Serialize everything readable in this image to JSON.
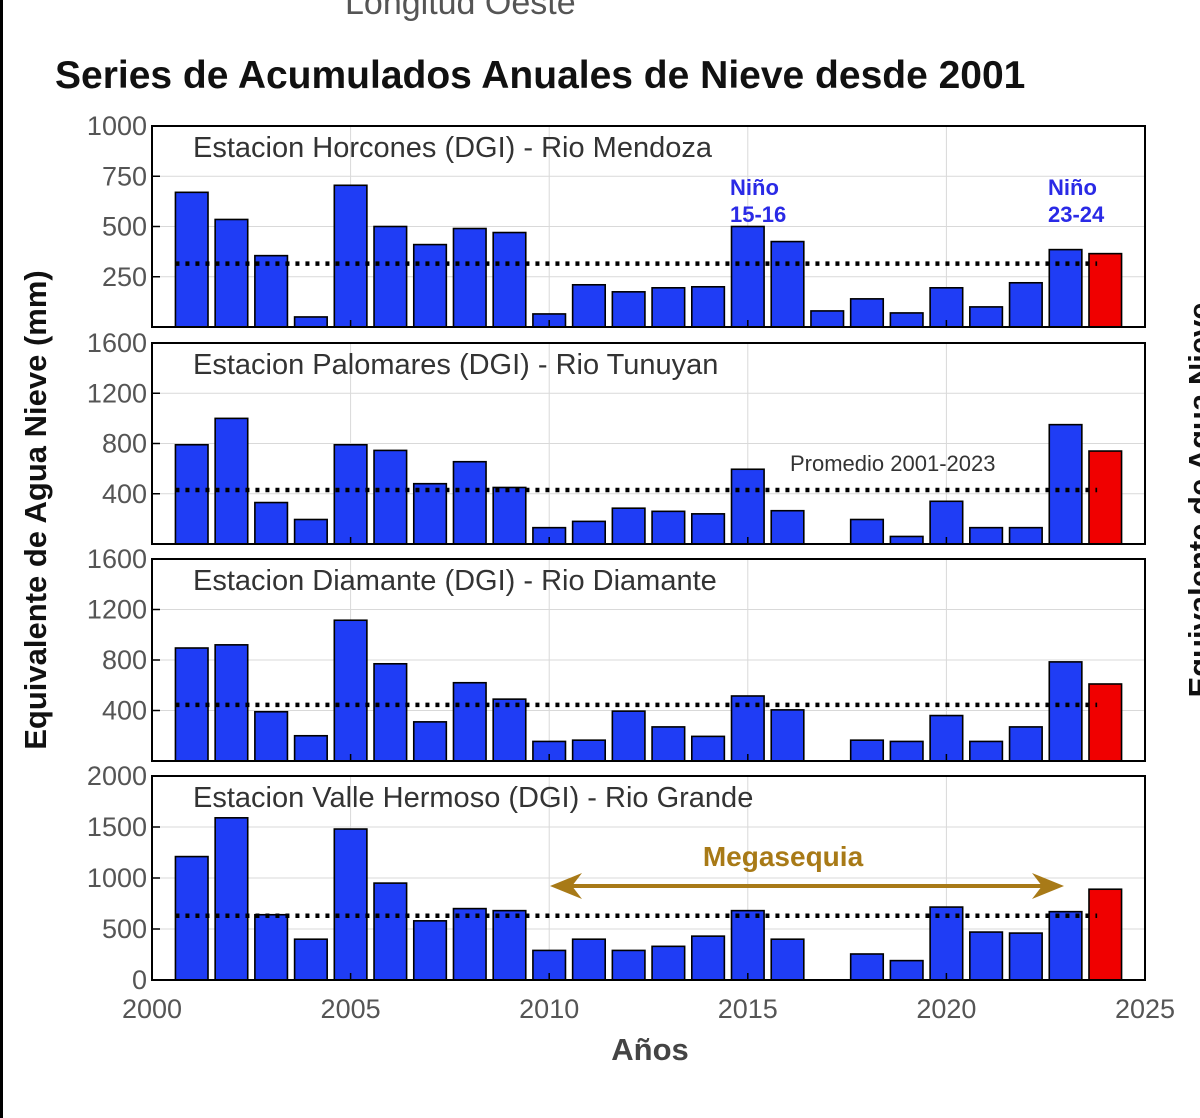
{
  "header": {
    "top_label": "Longitud Oeste",
    "title": "Series de Acumulados Anuales de Nieve desde 2001"
  },
  "axes": {
    "ylabel": "Equivalente de Agua Nieve (mm)",
    "xlabel": "Años",
    "x_ticks": [
      "2000",
      "2005",
      "2010",
      "2015",
      "2020",
      "2025"
    ]
  },
  "colors": {
    "bar": "#1f3df5",
    "bar_current": "#f00000",
    "annotation_nino": "#2a2ae6",
    "annotation_megasequia": "#a87a17",
    "mean_line": "#000000",
    "grid": "#d9d9d9"
  },
  "annotations": {
    "nino_1": "Niño 15-16",
    "nino_2": "Niño 23-24",
    "promedio": "Promedio 2001-2023",
    "megasequia": "Megasequia"
  },
  "right_fragment": "Equivalente de Agua Nieve",
  "chart_data": [
    {
      "type": "bar",
      "title": "Estacion Horcones (DGI) - Rio Mendoza",
      "x": [
        2001,
        2002,
        2003,
        2004,
        2005,
        2006,
        2007,
        2008,
        2009,
        2010,
        2011,
        2012,
        2013,
        2014,
        2015,
        2016,
        2017,
        2018,
        2019,
        2020,
        2021,
        2022,
        2023,
        2024
      ],
      "values": [
        670,
        535,
        355,
        50,
        705,
        500,
        410,
        490,
        470,
        65,
        210,
        175,
        195,
        200,
        500,
        425,
        80,
        140,
        70,
        195,
        100,
        220,
        385,
        365
      ],
      "highlight_year": 2024,
      "ylim": [
        0,
        1000
      ],
      "yticks": [
        "250",
        "500",
        "750",
        "1000"
      ],
      "mean_2001_2023": 315,
      "xlim": [
        2000,
        2025
      ],
      "grid": true
    },
    {
      "type": "bar",
      "title": "Estacion Palomares (DGI) - Rio Tunuyan",
      "x": [
        2001,
        2002,
        2003,
        2004,
        2005,
        2006,
        2007,
        2008,
        2009,
        2010,
        2011,
        2012,
        2013,
        2014,
        2015,
        2016,
        2017,
        2018,
        2019,
        2020,
        2021,
        2022,
        2023,
        2024
      ],
      "values": [
        790,
        1000,
        330,
        195,
        790,
        745,
        480,
        655,
        450,
        130,
        180,
        285,
        260,
        240,
        595,
        265,
        0,
        195,
        60,
        340,
        130,
        130,
        950,
        740
      ],
      "highlight_year": 2024,
      "ylim": [
        0,
        1600
      ],
      "yticks": [
        "400",
        "800",
        "1200",
        "1600"
      ],
      "mean_2001_2023": 430,
      "xlim": [
        2000,
        2025
      ],
      "grid": true
    },
    {
      "type": "bar",
      "title": "Estacion Diamante (DGI) - Rio Diamante",
      "x": [
        2001,
        2002,
        2003,
        2004,
        2005,
        2006,
        2007,
        2008,
        2009,
        2010,
        2011,
        2012,
        2013,
        2014,
        2015,
        2016,
        2017,
        2018,
        2019,
        2020,
        2021,
        2022,
        2023,
        2024
      ],
      "values": [
        895,
        920,
        390,
        200,
        1115,
        770,
        310,
        620,
        490,
        155,
        165,
        395,
        270,
        195,
        515,
        405,
        0,
        165,
        155,
        360,
        155,
        270,
        785,
        610
      ],
      "highlight_year": 2024,
      "ylim": [
        0,
        1600
      ],
      "yticks": [
        "400",
        "800",
        "1200",
        "1600"
      ],
      "mean_2001_2023": 445,
      "xlim": [
        2000,
        2025
      ],
      "grid": true
    },
    {
      "type": "bar",
      "title": "Estacion Valle Hermoso (DGI) - Rio Grande",
      "x": [
        2001,
        2002,
        2003,
        2004,
        2005,
        2006,
        2007,
        2008,
        2009,
        2010,
        2011,
        2012,
        2013,
        2014,
        2015,
        2016,
        2017,
        2018,
        2019,
        2020,
        2021,
        2022,
        2023,
        2024
      ],
      "values": [
        1210,
        1590,
        640,
        400,
        1480,
        950,
        580,
        700,
        680,
        290,
        400,
        290,
        330,
        430,
        680,
        400,
        0,
        255,
        190,
        715,
        470,
        460,
        670,
        890
      ],
      "highlight_year": 2024,
      "ylim": [
        0,
        2000
      ],
      "yticks": [
        "0",
        "500",
        "1000",
        "1500",
        "2000"
      ],
      "mean_2001_2023": 630,
      "xlim": [
        2000,
        2025
      ],
      "grid": true
    }
  ]
}
